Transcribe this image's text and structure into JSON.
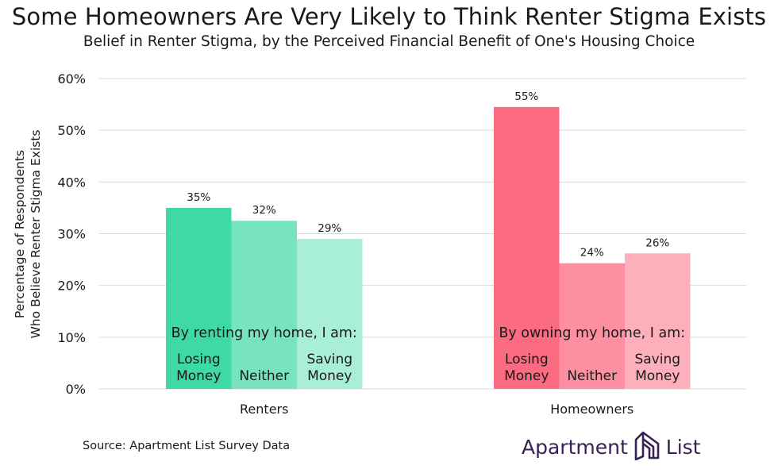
{
  "title": "Some Homeowners Are Very Likely to Think Renter Stigma Exists",
  "subtitle": "Belief in Renter Stigma, by the Perceived Financial Benefit of One's Housing Choice",
  "source": "Source: Apartment List Survey Data",
  "brand": {
    "word1": "Apartment",
    "word2": "List",
    "logo_icon": "apartment-list-logo"
  },
  "colors": {
    "renters": [
      "#3ed9a6",
      "#78e3c0",
      "#a9eed6"
    ],
    "homeowners": [
      "#fb6b81",
      "#fc8fa0",
      "#fdb0bc"
    ],
    "grid": "#d9d9d9",
    "brand": "#3a2155"
  },
  "chart_data": {
    "type": "bar",
    "title": "Some Homeowners Are Very Likely to Think Renter Stigma Exists",
    "subtitle": "Belief in Renter Stigma, by the Perceived Financial Benefit of One's Housing Choice",
    "ylabel_lines": [
      "Percentage of Respondents",
      "Who Believe Renter Stigma Exists"
    ],
    "ylim": [
      0,
      60
    ],
    "yticks": [
      0,
      10,
      20,
      30,
      40,
      50,
      60
    ],
    "ytick_labels": [
      "0%",
      "10%",
      "20%",
      "30%",
      "40%",
      "50%",
      "60%"
    ],
    "grid": true,
    "groups": [
      {
        "name": "Renters",
        "header": "By renting my home, I am:",
        "bars": [
          {
            "label_lines": [
              "Losing",
              "Money"
            ],
            "value": 35,
            "value_label": "35%"
          },
          {
            "label_lines": [
              "Neither"
            ],
            "value": 32.5,
            "value_label": "32%"
          },
          {
            "label_lines": [
              "Saving",
              "Money"
            ],
            "value": 29,
            "value_label": "29%"
          }
        ]
      },
      {
        "name": "Homeowners",
        "header": "By owning my home, I am:",
        "bars": [
          {
            "label_lines": [
              "Losing",
              "Money"
            ],
            "value": 54.5,
            "value_label": "55%"
          },
          {
            "label_lines": [
              "Neither"
            ],
            "value": 24.3,
            "value_label": "24%"
          },
          {
            "label_lines": [
              "Saving",
              "Money"
            ],
            "value": 26.2,
            "value_label": "26%"
          }
        ]
      }
    ]
  }
}
